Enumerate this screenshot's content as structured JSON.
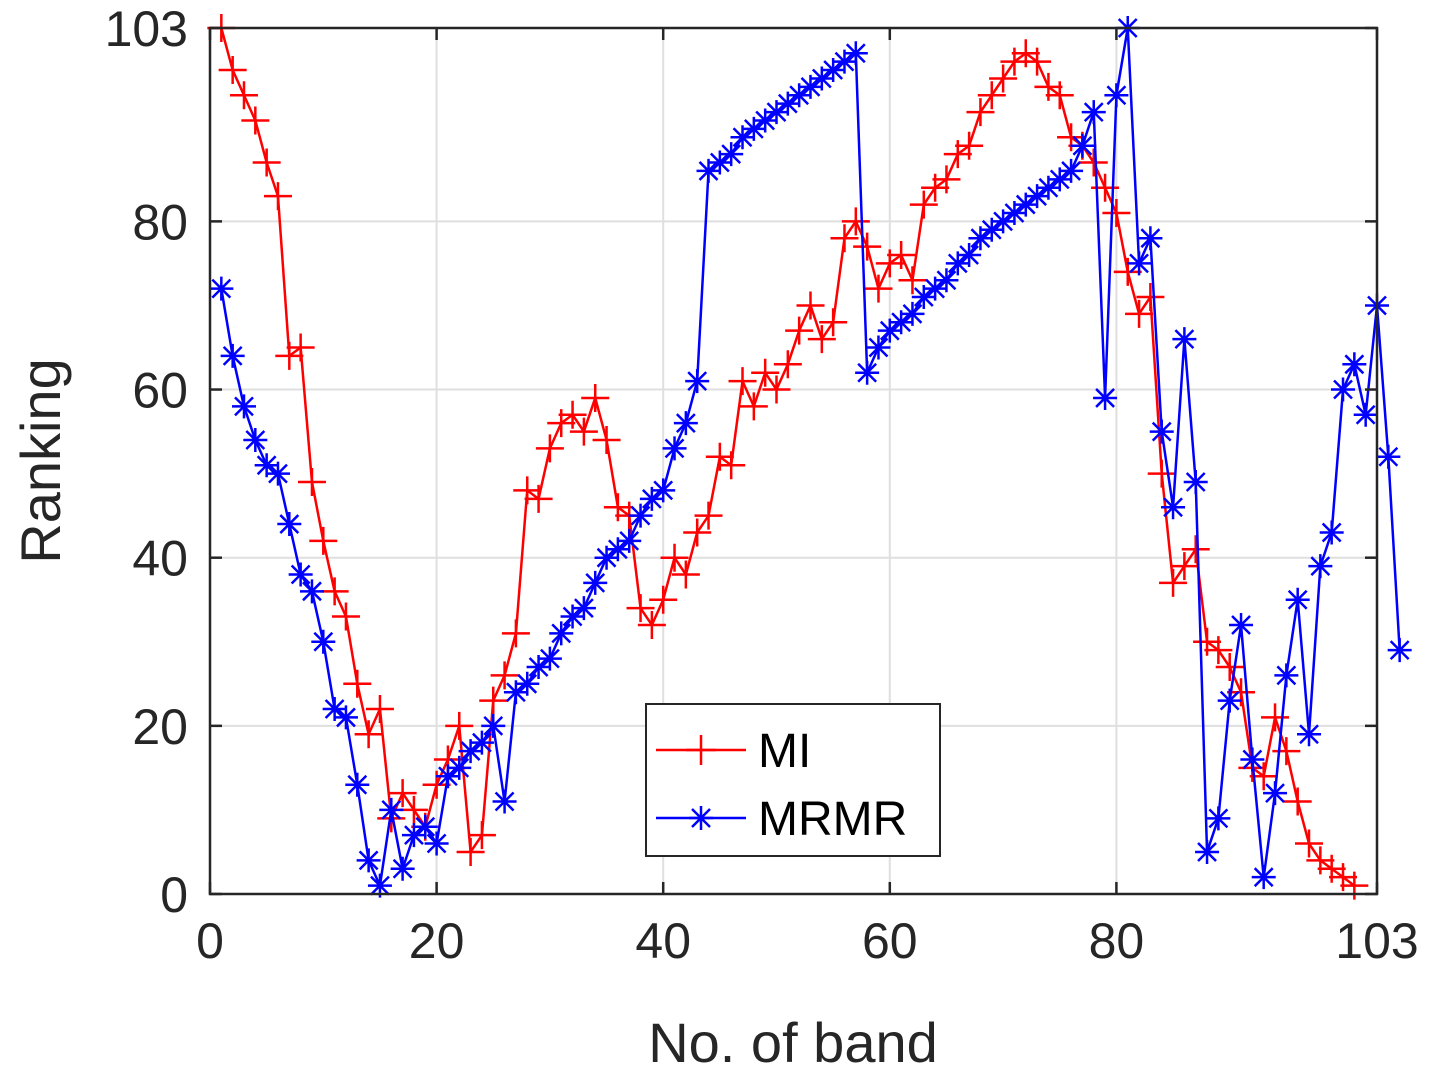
{
  "chart_data": {
    "type": "line",
    "title": "",
    "xlabel": "No. of band",
    "ylabel": "Ranking",
    "xlim": [
      0,
      103
    ],
    "ylim": [
      0,
      103
    ],
    "grid": true,
    "legend_position": "bottom-center",
    "x_ticks": [
      {
        "value": 0,
        "label": "0"
      },
      {
        "value": 20,
        "label": "20"
      },
      {
        "value": 40,
        "label": "40"
      },
      {
        "value": 60,
        "label": "60"
      },
      {
        "value": 80,
        "label": "80"
      },
      {
        "value": 103,
        "label": "103"
      }
    ],
    "y_ticks": [
      {
        "value": 0,
        "label": "0"
      },
      {
        "value": 20,
        "label": "20"
      },
      {
        "value": 40,
        "label": "40"
      },
      {
        "value": 60,
        "label": "60"
      },
      {
        "value": 80,
        "label": "80"
      },
      {
        "value": 103,
        "label": "103"
      }
    ],
    "series": [
      {
        "name": "MI",
        "color": "#ff0000",
        "marker": "plus",
        "values": [
          103,
          98,
          95,
          92,
          87,
          83,
          64,
          65,
          49,
          42,
          36,
          33,
          25,
          19,
          22,
          9,
          12,
          10,
          8,
          13,
          16,
          20,
          5,
          7,
          23,
          26,
          31,
          48,
          47,
          53,
          56,
          57,
          55,
          59,
          54,
          46,
          45,
          34,
          32,
          35,
          40,
          38,
          43,
          45,
          52,
          51,
          61,
          58,
          62,
          60,
          63,
          67,
          70,
          66,
          68,
          78,
          80,
          77,
          72,
          75,
          76,
          73,
          82,
          84,
          85,
          88,
          89,
          93,
          95,
          97,
          99,
          100,
          99,
          96,
          95,
          90,
          89,
          87,
          84,
          81,
          74,
          69,
          71,
          50,
          37,
          39,
          41,
          30,
          29,
          27,
          24,
          15,
          14,
          21,
          17,
          11,
          6,
          4,
          3,
          2,
          1
        ]
      },
      {
        "name": "MRMR",
        "color": "#0000ff",
        "marker": "asterisk",
        "values": [
          72,
          64,
          58,
          54,
          51,
          50,
          44,
          38,
          36,
          30,
          22,
          21,
          13,
          4,
          1,
          10,
          3,
          7,
          8,
          6,
          14,
          15,
          17,
          18,
          20,
          11,
          24,
          25,
          27,
          28,
          31,
          33,
          34,
          37,
          40,
          41,
          42,
          45,
          47,
          48,
          53,
          56,
          61,
          86,
          87,
          88,
          90,
          91,
          92,
          93,
          94,
          95,
          96,
          97,
          98,
          99,
          100,
          62,
          65,
          67,
          68,
          69,
          71,
          72,
          73,
          75,
          76,
          78,
          79,
          80,
          81,
          82,
          83,
          84,
          85,
          86,
          89,
          93,
          59,
          95,
          103,
          75,
          78,
          55,
          46,
          66,
          49,
          5,
          9,
          23,
          32,
          16,
          2,
          12,
          26,
          35,
          19,
          39,
          43,
          60,
          63,
          57,
          70,
          52,
          29
        ]
      }
    ]
  }
}
